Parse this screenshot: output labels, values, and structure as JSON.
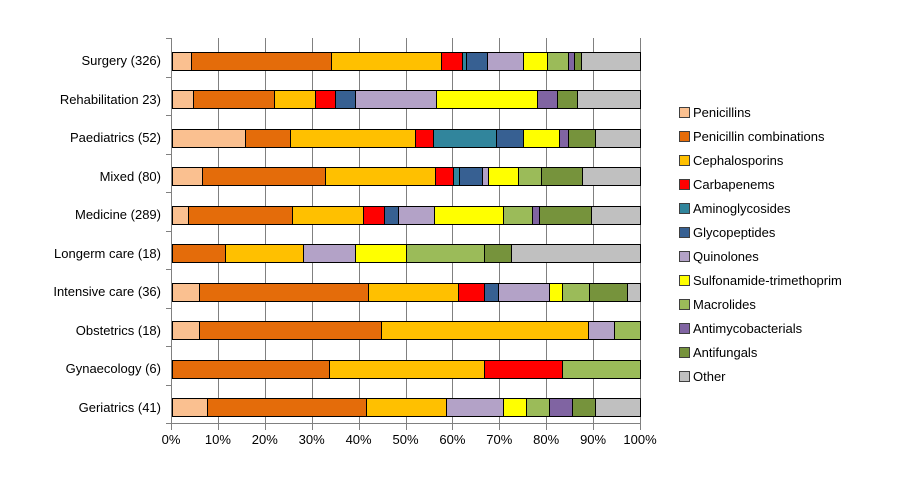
{
  "chart_data": {
    "type": "bar",
    "orientation": "horizontal",
    "stacked": true,
    "stack_unit": "percent",
    "title": "",
    "xlabel": "",
    "ylabel": "",
    "xlim": [
      0,
      100
    ],
    "x_ticks": [
      "0%",
      "10%",
      "20%",
      "30%",
      "40%",
      "50%",
      "60%",
      "70%",
      "80%",
      "90%",
      "100%"
    ],
    "grid": true,
    "legend_position": "right",
    "categories": [
      "Surgery (326)",
      "Rehabilitation 23)",
      "Paediatrics (52)",
      "Mixed (80)",
      "Medicine (289)",
      "Longerm care (18)",
      "Intensive care (36)",
      "Obstetrics (18)",
      "Gynaecology (6)",
      "Geriatrics (41)"
    ],
    "series": [
      {
        "name": "Penicillins",
        "color": "#FAC090",
        "values": [
          3.8,
          4.3,
          15.4,
          6.3,
          3.3,
          0,
          5.6,
          5.6,
          0,
          7.3
        ]
      },
      {
        "name": "Penicillin combinations",
        "color": "#E46C0A",
        "values": [
          30.1,
          17.4,
          9.6,
          26.2,
          22.1,
          11.1,
          36.1,
          38.9,
          33.3,
          34.1
        ]
      },
      {
        "name": "Cephalosporins",
        "color": "#FFC000",
        "values": [
          23.4,
          8.7,
          26.9,
          23.7,
          15.2,
          16.7,
          19.4,
          44.4,
          33.3,
          17.1
        ]
      },
      {
        "name": "Carbapenems",
        "color": "#FF0000",
        "values": [
          4.5,
          4.3,
          3.8,
          3.8,
          4.5,
          0,
          5.6,
          0,
          16.7,
          0
        ]
      },
      {
        "name": "Aminoglycosides",
        "color": "#31859C",
        "values": [
          0.9,
          0,
          13.5,
          1.3,
          0,
          0,
          0,
          0,
          0,
          0
        ]
      },
      {
        "name": "Glycopeptides",
        "color": "#376092",
        "values": [
          4.6,
          4.3,
          5.8,
          5.0,
          3.0,
          0,
          2.8,
          0,
          0,
          0
        ]
      },
      {
        "name": "Quinolones",
        "color": "#B3A2C7",
        "values": [
          7.7,
          17.4,
          0,
          1.3,
          7.9,
          11.1,
          11.1,
          5.6,
          0,
          12.2
        ]
      },
      {
        "name": "Sulfonamide-trimethoprim",
        "color": "#FFFF00",
        "values": [
          5.2,
          21.7,
          7.7,
          6.3,
          14.6,
          11.1,
          2.8,
          0,
          0,
          4.9
        ]
      },
      {
        "name": "Macrolides",
        "color": "#9BBB59",
        "values": [
          4.3,
          0,
          0,
          5.0,
          6.2,
          16.7,
          5.6,
          5.6,
          16.7,
          4.9
        ]
      },
      {
        "name": "Antimycobacterials",
        "color": "#8064A2",
        "values": [
          1.4,
          4.3,
          1.9,
          0,
          1.6,
          0,
          0,
          0,
          0,
          4.9
        ]
      },
      {
        "name": "Antifungals",
        "color": "#76933C",
        "values": [
          1.5,
          4.3,
          5.8,
          8.8,
          11.2,
          5.6,
          8.3,
          0,
          0,
          4.9
        ]
      },
      {
        "name": "Other",
        "color": "#C0C0C0",
        "values": [
          12.6,
          13.6,
          9.6,
          12.4,
          10.4,
          27.7,
          2.7,
          0,
          0,
          9.7
        ]
      }
    ]
  },
  "layout_colors": {
    "axis": "#808080",
    "grid": "#808080",
    "bar_border": "#000000",
    "background": "#FFFFFF"
  }
}
